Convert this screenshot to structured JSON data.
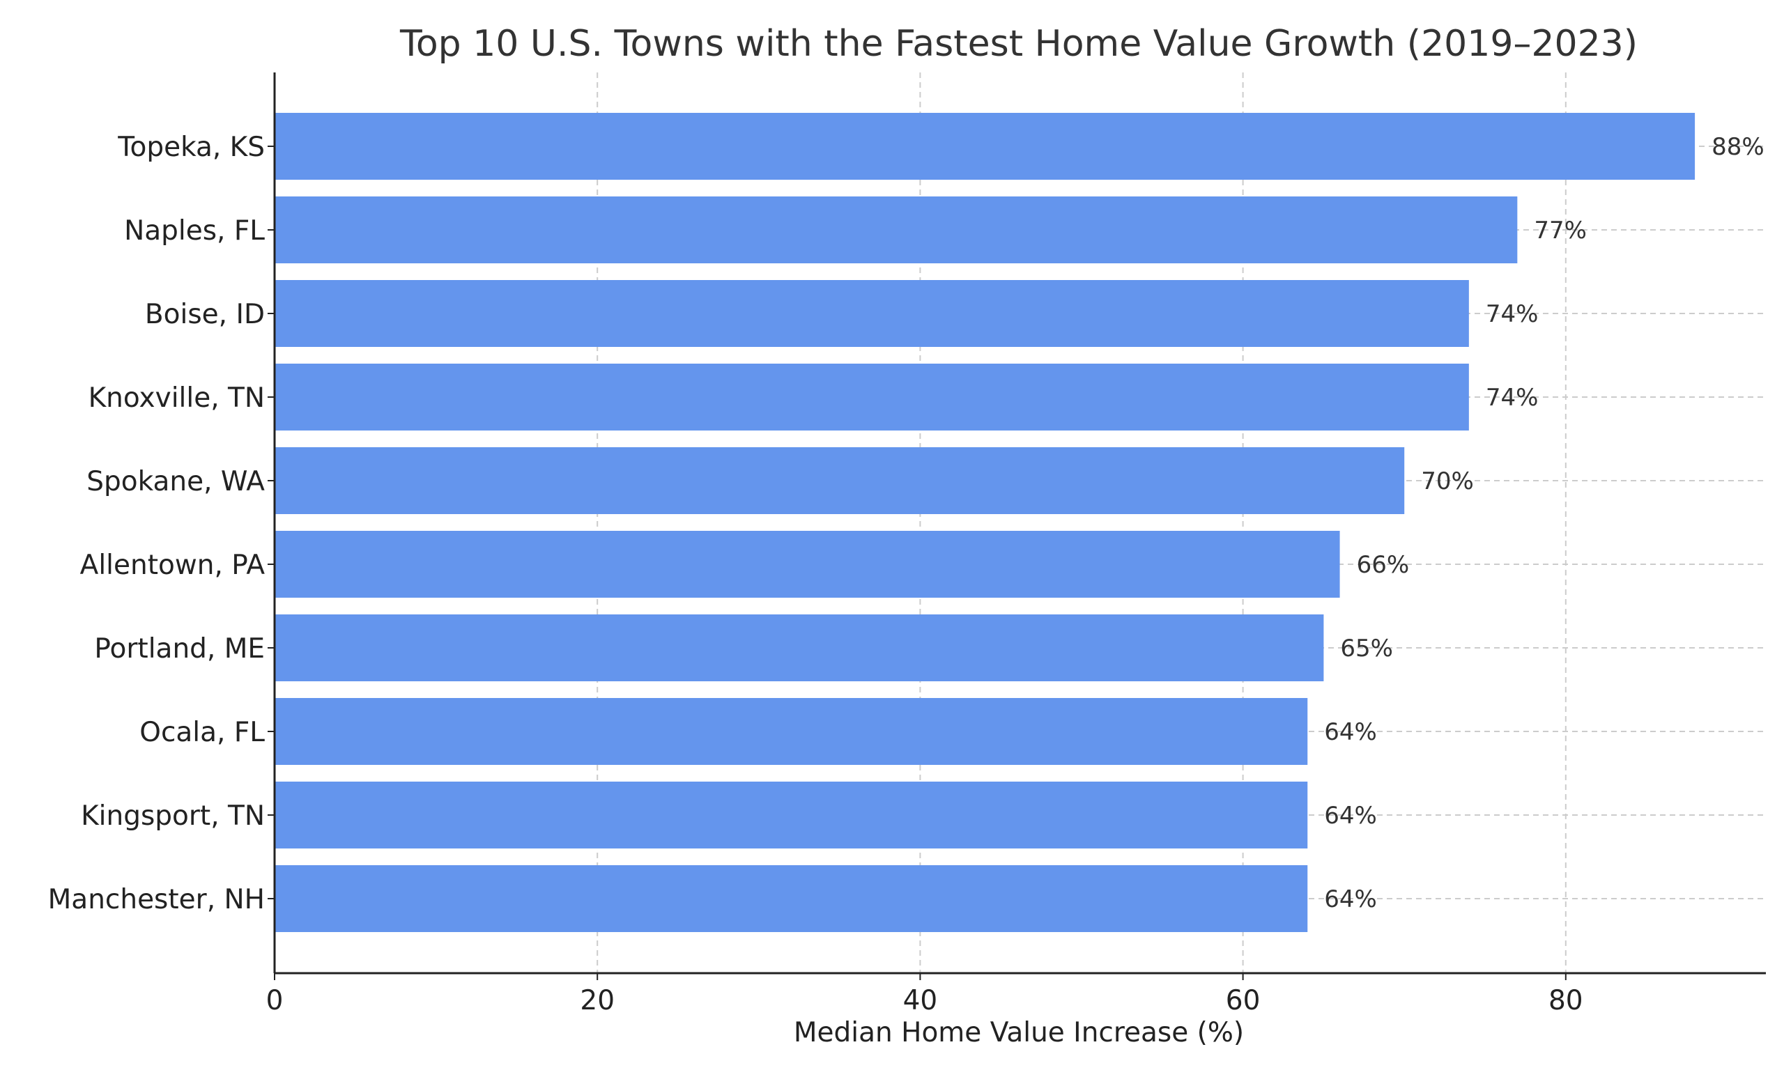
{
  "chart_data": {
    "type": "bar",
    "orientation": "horizontal",
    "title": "Top 10 U.S. Towns with the Fastest Home Value Growth (2019–2023)",
    "xlabel": "Median Home Value Increase (%)",
    "ylabel": "",
    "categories": [
      "Topeka, KS",
      "Naples, FL",
      "Boise, ID",
      "Knoxville, TN",
      "Spokane, WA",
      "Allentown, PA",
      "Portland, ME",
      "Ocala, FL",
      "Kingsport, TN",
      "Manchester, NH"
    ],
    "values": [
      88,
      77,
      74,
      74,
      70,
      66,
      65,
      64,
      64,
      64
    ],
    "value_labels": [
      "88%",
      "77%",
      "74%",
      "74%",
      "70%",
      "66%",
      "65%",
      "64%",
      "64%",
      "64%"
    ],
    "xlim": [
      0,
      92.4
    ],
    "xticks": [
      0,
      20,
      40,
      60,
      80
    ],
    "xtick_labels": [
      "0",
      "20",
      "40",
      "60",
      "80"
    ],
    "grid": true,
    "grid_style": "dashed",
    "bar_color": "#6495ED",
    "grid_color": "#cccccc",
    "axis_color": "#222222"
  }
}
